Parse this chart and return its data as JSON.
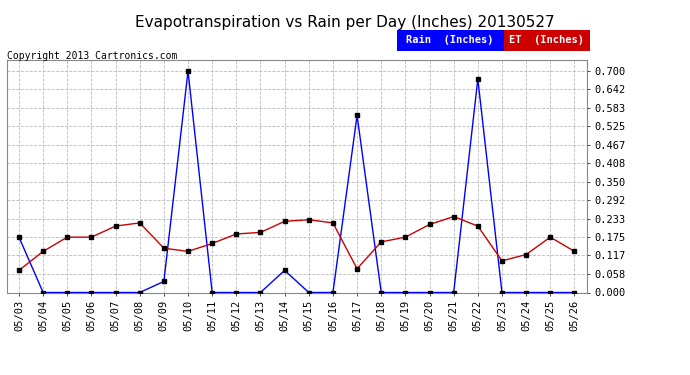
{
  "title": "Evapotranspiration vs Rain per Day (Inches) 20130527",
  "copyright": "Copyright 2013 Cartronics.com",
  "legend_rain": "Rain  (Inches)",
  "legend_et": "ET  (Inches)",
  "dates": [
    "05/03",
    "05/04",
    "05/05",
    "05/06",
    "05/07",
    "05/08",
    "05/09",
    "05/10",
    "05/11",
    "05/12",
    "05/13",
    "05/14",
    "05/15",
    "05/16",
    "05/17",
    "05/18",
    "05/19",
    "05/20",
    "05/21",
    "05/22",
    "05/23",
    "05/24",
    "05/25",
    "05/26"
  ],
  "rain": [
    0.175,
    0.0,
    0.0,
    0.0,
    0.0,
    0.0,
    0.035,
    0.7,
    0.0,
    0.0,
    0.0,
    0.07,
    0.0,
    0.0,
    0.56,
    0.0,
    0.0,
    0.0,
    0.0,
    0.675,
    0.0,
    0.0,
    0.0,
    0.0
  ],
  "et": [
    0.07,
    0.13,
    0.175,
    0.175,
    0.21,
    0.22,
    0.14,
    0.13,
    0.155,
    0.185,
    0.19,
    0.225,
    0.23,
    0.22,
    0.075,
    0.16,
    0.175,
    0.215,
    0.24,
    0.21,
    0.1,
    0.12,
    0.175,
    0.13
  ],
  "rain_color": "#0000ff",
  "et_color": "#cc0000",
  "bg_color": "#ffffff",
  "grid_color": "#bbbbbb",
  "yticks": [
    0.0,
    0.058,
    0.117,
    0.175,
    0.233,
    0.292,
    0.35,
    0.408,
    0.467,
    0.525,
    0.583,
    0.642,
    0.7
  ],
  "ylim": [
    0.0,
    0.735
  ],
  "title_fontsize": 11,
  "tick_fontsize": 7.5,
  "copyright_fontsize": 7
}
